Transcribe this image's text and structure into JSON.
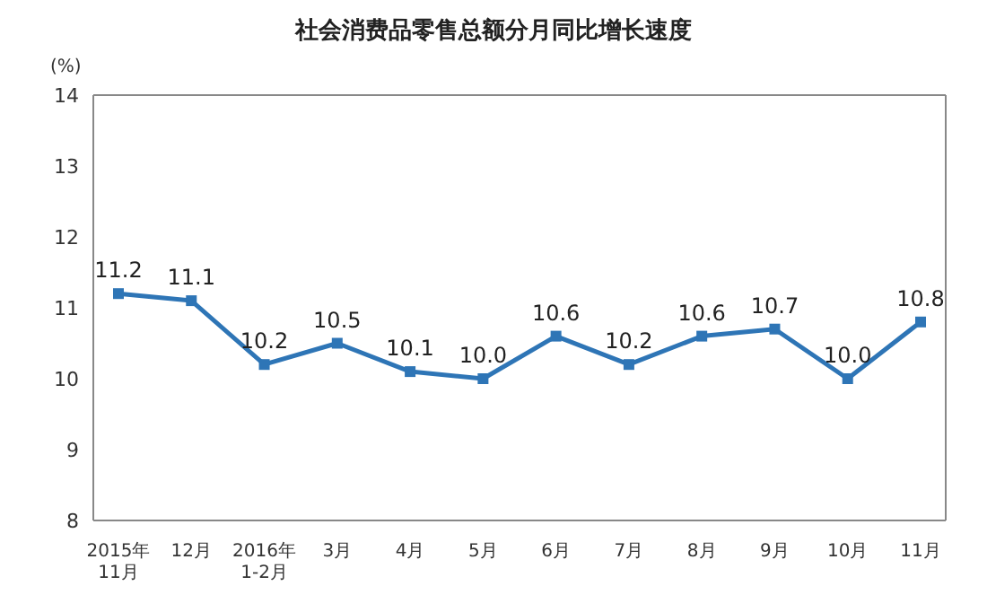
{
  "chart_data": {
    "type": "line",
    "title": "社会消费品零售总额分月同比增长速度",
    "ylabel": "(%)",
    "categories": [
      "2015年\n11月",
      "12月",
      "2016年\n1-2月",
      "3月",
      "4月",
      "5月",
      "6月",
      "7月",
      "8月",
      "9月",
      "10月",
      "11月"
    ],
    "series": [
      {
        "color": "#2e75b6",
        "values": [
          11.2,
          11.1,
          10.2,
          10.5,
          10.1,
          10.0,
          10.6,
          10.2,
          10.6,
          10.7,
          10.0,
          10.8
        ],
        "value_labels": [
          "11.2",
          "11.1",
          "10.2",
          "10.5",
          "10.1",
          "10.0",
          "10.6",
          "10.2",
          "10.6",
          "10.7",
          "10.0",
          "10.8"
        ]
      }
    ],
    "ylim": [
      8,
      14
    ],
    "yticks": [
      8,
      9,
      10,
      11,
      12,
      13,
      14
    ],
    "grid": false,
    "marker": "square",
    "line_style": "solid"
  }
}
